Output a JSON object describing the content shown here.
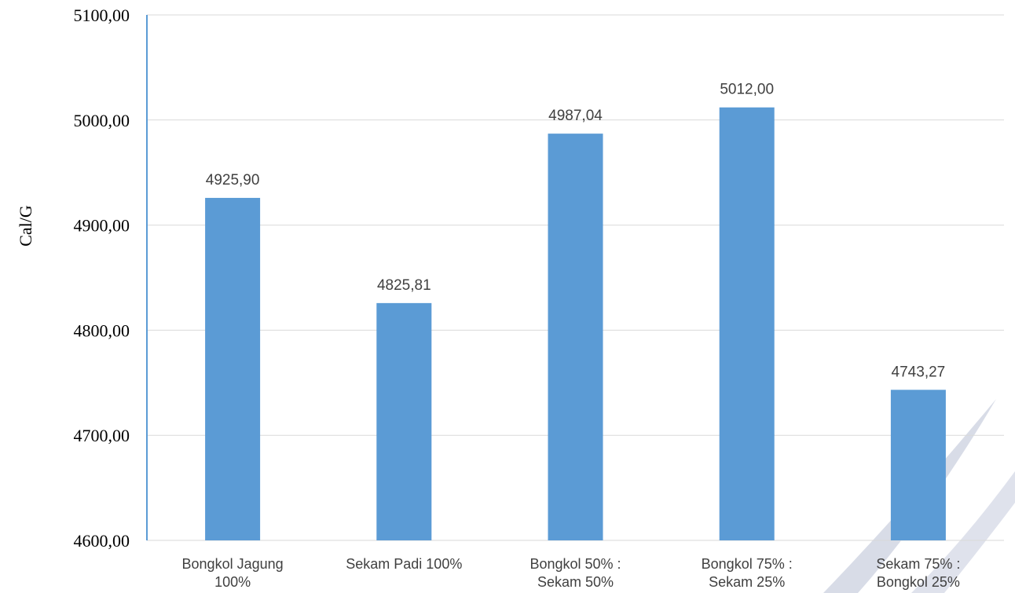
{
  "chart_data": {
    "type": "bar",
    "categories": [
      [
        "Bongkol Jagung",
        "100%"
      ],
      [
        "Sekam Padi 100%"
      ],
      [
        "Bongkol 50% :",
        "Sekam 50%"
      ],
      [
        "Bongkol 75% :",
        "Sekam 25%"
      ],
      [
        "Sekam 75% :",
        "Bongkol 25%"
      ]
    ],
    "values": [
      4925.9,
      4825.81,
      4987.04,
      5012.0,
      4743.27
    ],
    "data_labels": [
      "4925,90",
      "4825,81",
      "4987,04",
      "5012,00",
      "4743,27"
    ],
    "ylabel": "Cal/G",
    "ylim": [
      4600,
      5100
    ],
    "yticks": [
      4600,
      4700,
      4800,
      4900,
      5000,
      5100
    ],
    "ytick_labels": [
      "4600,00",
      "4700,00",
      "4800,00",
      "4900,00",
      "5000,00",
      "5100,00"
    ],
    "grid": true,
    "legend": "none"
  },
  "colors": {
    "bar": "#5b9bd5",
    "grid": "#d9d9d9",
    "axis": "#5b9bd5",
    "watermark": "#b8bfd4"
  }
}
